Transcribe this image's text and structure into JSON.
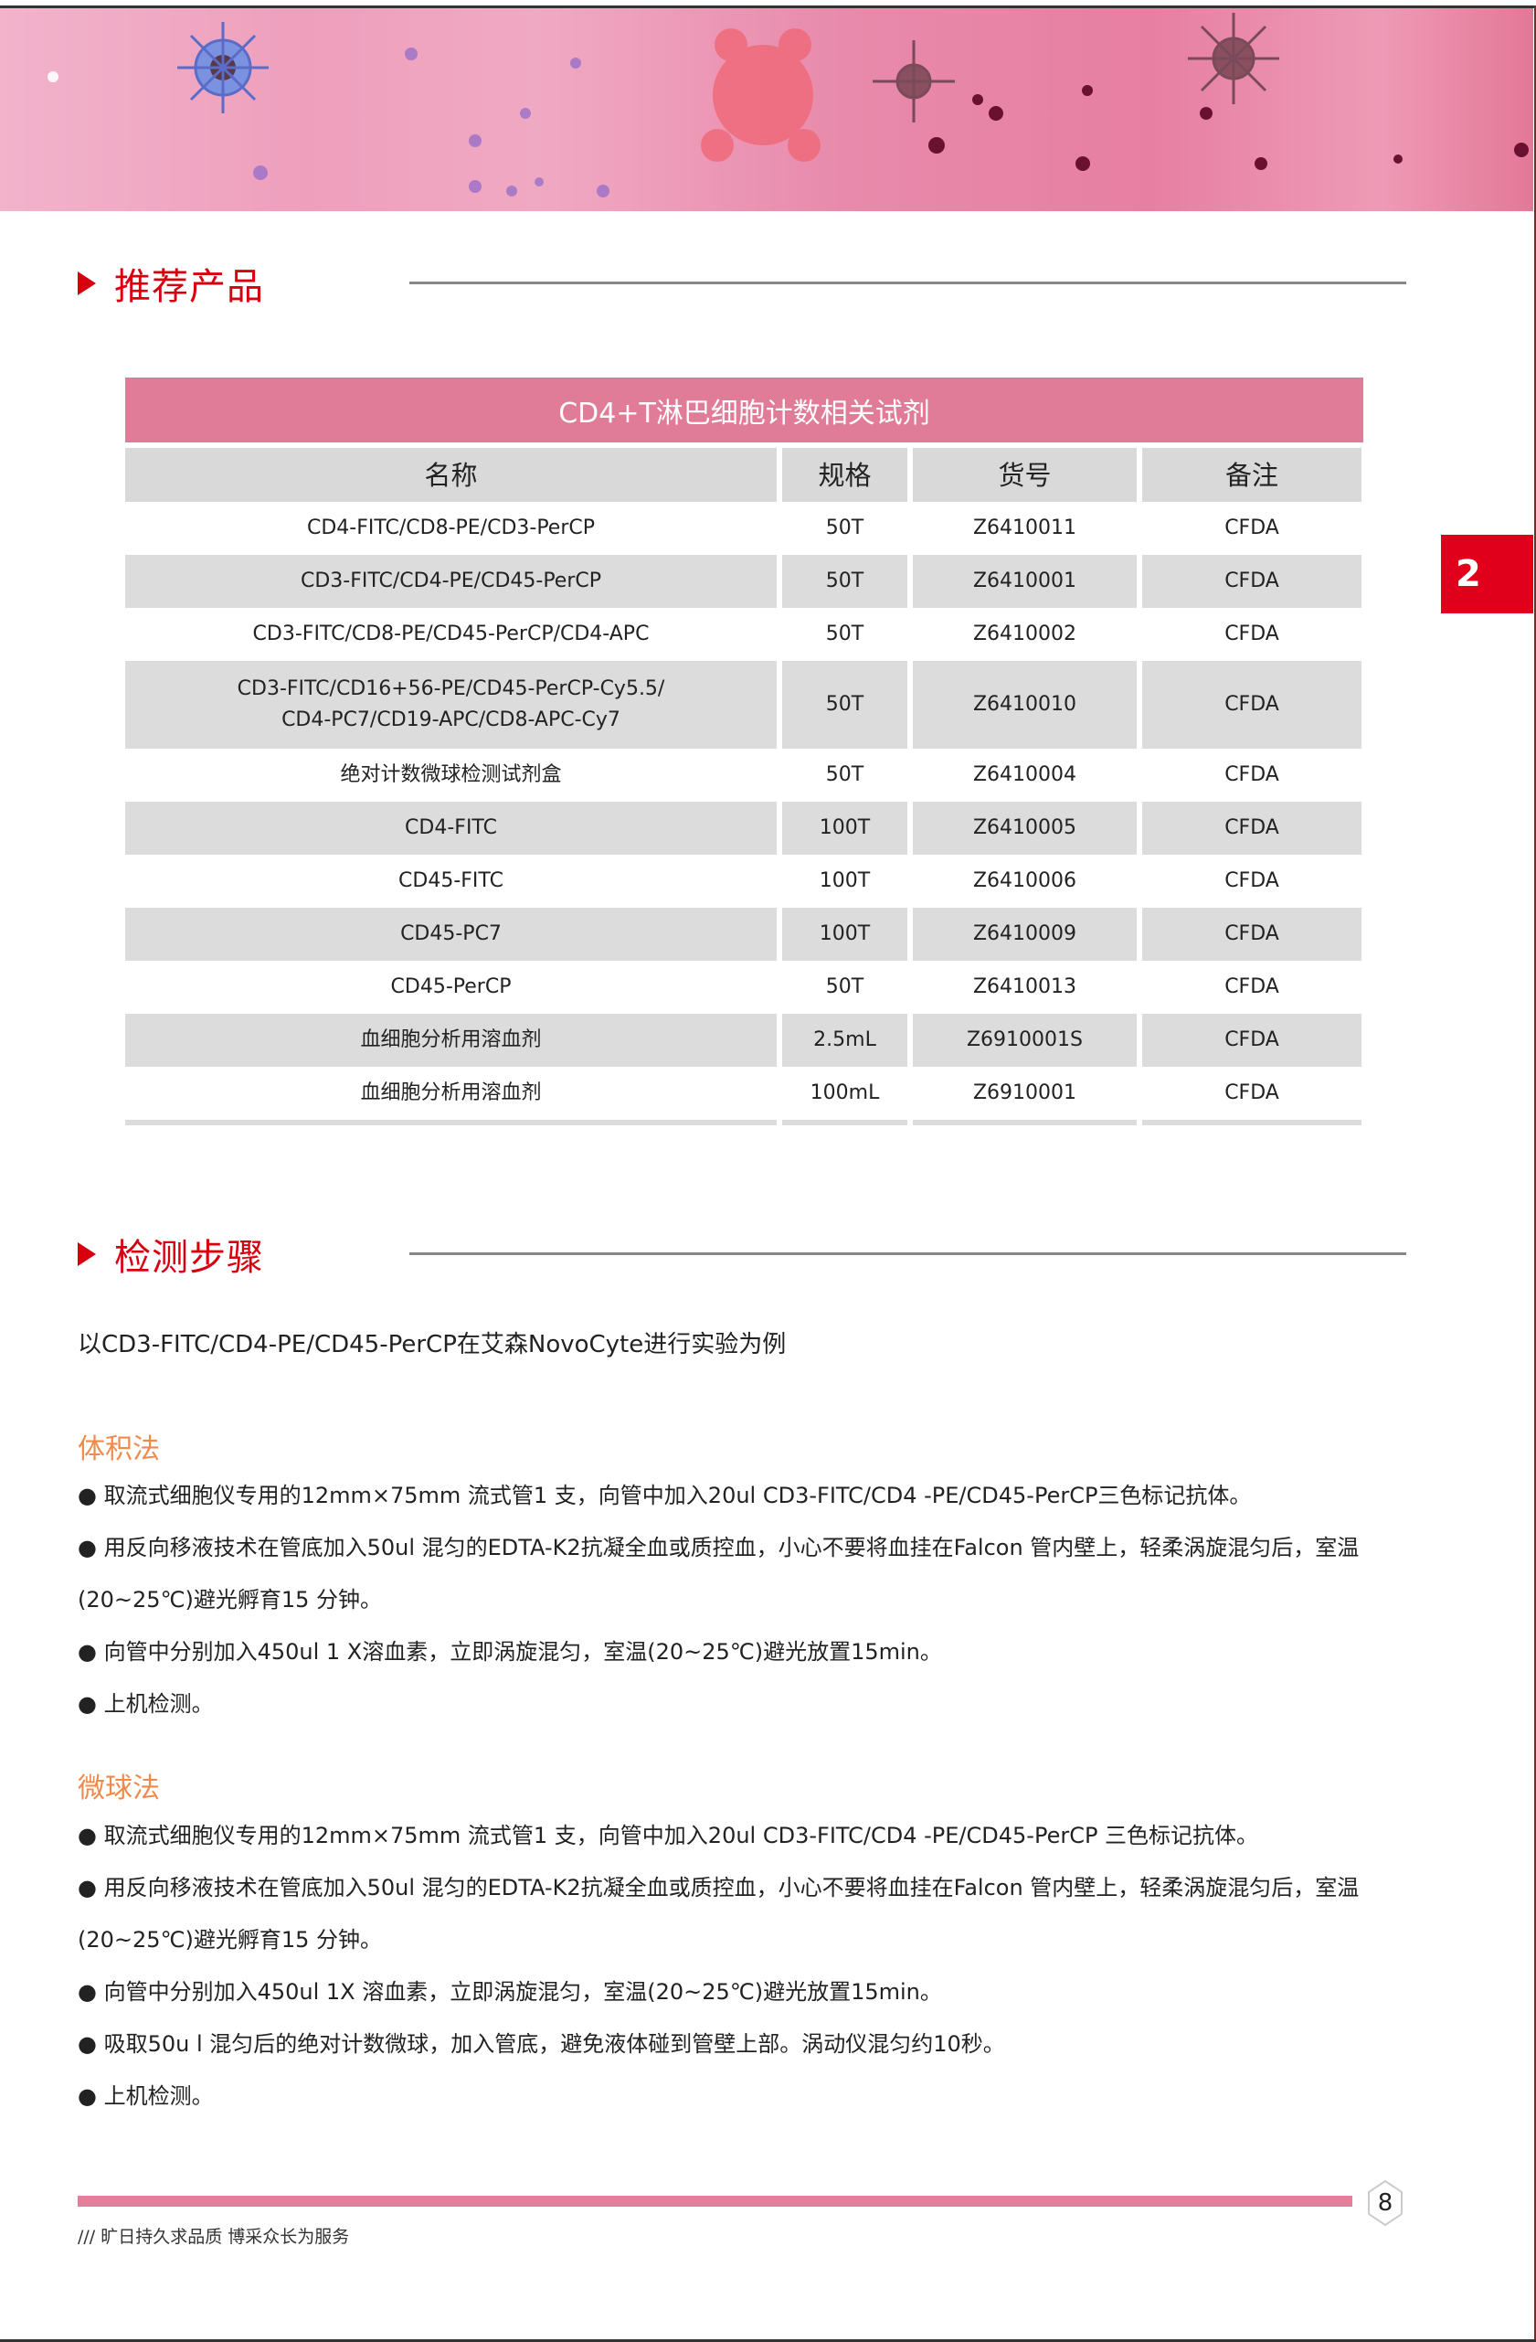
{
  "side_tab": {
    "label": "2"
  },
  "section1": {
    "title": "推荐产品"
  },
  "table": {
    "title": "CD4+T淋巴细胞计数相关试剂",
    "headers": [
      "名称",
      "规格",
      "货号",
      "备注"
    ],
    "rows": [
      {
        "name": "CD4-FITC/CD8-PE/CD3-PerCP",
        "spec": "50T",
        "code": "Z6410011",
        "note": "CFDA"
      },
      {
        "name": "CD3-FITC/CD4-PE/CD45-PerCP",
        "spec": "50T",
        "code": "Z6410001",
        "note": "CFDA"
      },
      {
        "name": "CD3-FITC/CD8-PE/CD45-PerCP/CD4-APC",
        "spec": "50T",
        "code": "Z6410002",
        "note": "CFDA"
      },
      {
        "name": "CD3-FITC/CD16+56-PE/CD45-PerCP-Cy5.5/",
        "name2": "CD4-PC7/CD19-APC/CD8-APC-Cy7",
        "spec": "50T",
        "code": "Z6410010",
        "note": "CFDA"
      },
      {
        "name": "绝对计数微球检测试剂盒",
        "spec": "50T",
        "code": "Z6410004",
        "note": "CFDA"
      },
      {
        "name": "CD4-FITC",
        "spec": "100T",
        "code": "Z6410005",
        "note": "CFDA"
      },
      {
        "name": "CD45-FITC",
        "spec": "100T",
        "code": "Z6410006",
        "note": "CFDA"
      },
      {
        "name": "CD45-PC7",
        "spec": "100T",
        "code": "Z6410009",
        "note": "CFDA"
      },
      {
        "name": "CD45-PerCP",
        "spec": "50T",
        "code": "Z6410013",
        "note": "CFDA"
      },
      {
        "name": "血细胞分析用溶血剂",
        "spec": "2.5mL",
        "code": "Z6910001S",
        "note": "CFDA"
      },
      {
        "name": "血细胞分析用溶血剂",
        "spec": "100mL",
        "code": "Z6910001",
        "note": "CFDA"
      }
    ]
  },
  "section2": {
    "title": "检测步骤",
    "intro": "以CD3-FITC/CD4-PE/CD45-PerCP在艾森NovoCyte进行实验为例",
    "volume_method": {
      "title": "体积法",
      "steps": [
        "● 取流式细胞仪专用的12mm×75mm 流式管1 支，向管中加入20ul CD3-FITC/CD4 -PE/CD45-PerCP三色标记抗体。",
        "● 用反向移液技术在管底加入50ul 混匀的EDTA-K2抗凝全血或质控血，小心不要将血挂在Falcon 管内壁上，轻柔涡旋混匀后，室温(20~25℃)避光孵育15 分钟。",
        "● 向管中分别加入450ul 1 X溶血素，立即涡旋混匀，室温(20~25℃)避光放置15min。",
        "● 上机检测。"
      ]
    },
    "bead_method": {
      "title": "微球法",
      "steps": [
        "● 取流式细胞仪专用的12mm×75mm 流式管1 支，向管中加入20ul CD3-FITC/CD4 -PE/CD45-PerCP 三色标记抗体。",
        "● 用反向移液技术在管底加入50ul 混匀的EDTA-K2抗凝全血或质控血，小心不要将血挂在Falcon 管内壁上，轻柔涡旋混匀后，室温(20~25℃)避光孵育15 分钟。",
        "● 向管中分别加入450ul 1X 溶血素，立即涡旋混匀，室温(20~25℃)避光放置15min。",
        "● 吸取50u l 混匀后的绝对计数微球，加入管底，避免液体碰到管壁上部。涡动仪混匀约10秒。",
        "● 上机检测。"
      ]
    }
  },
  "footer": {
    "page_number": "8",
    "slogan": "/// 旷日持久求品质 博采众长为服务"
  },
  "colors": {
    "accent_red": "#d7000f",
    "table_pink": "#e07b98",
    "subheading_orange": "#f08a4b",
    "footer_pink": "#e37f9c"
  }
}
